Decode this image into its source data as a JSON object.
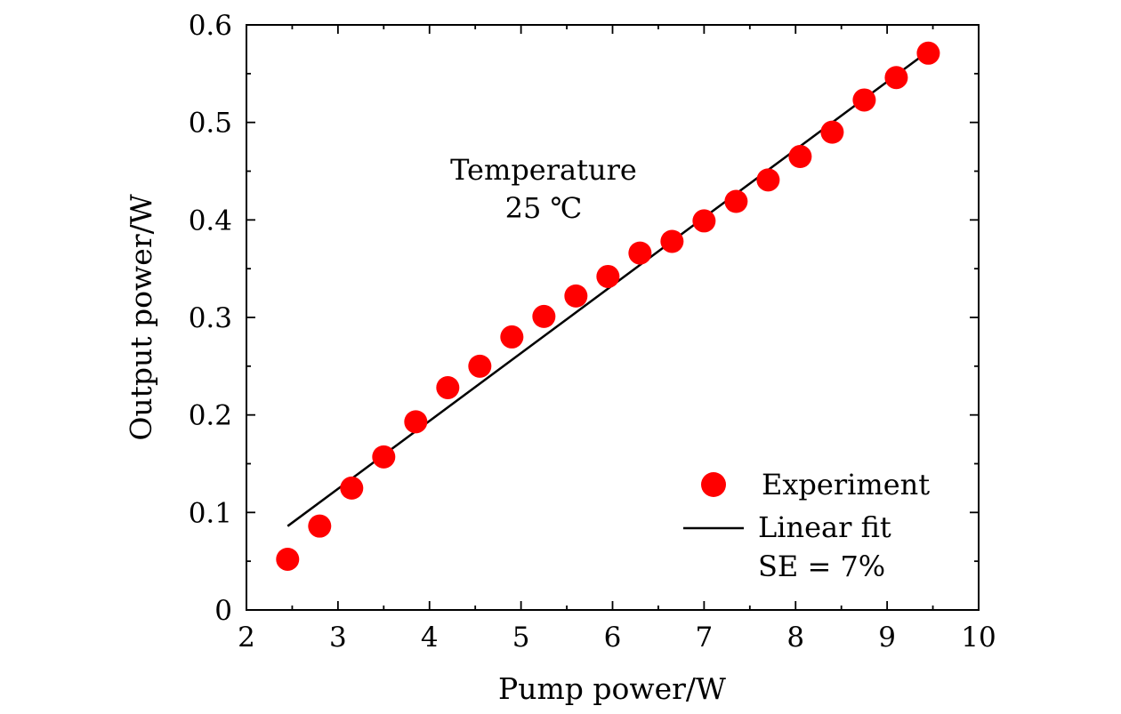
{
  "chart_data": {
    "type": "scatter",
    "xlabel": "Pump power/W",
    "ylabel": "Output power/W",
    "xlim": [
      2,
      10
    ],
    "ylim": [
      0,
      0.6
    ],
    "xticks": [
      "2",
      "3",
      "4",
      "5",
      "6",
      "7",
      "8",
      "9",
      "10"
    ],
    "yticks": [
      "0",
      "0.1",
      "0.2",
      "0.3",
      "0.4",
      "0.5",
      "0.6"
    ],
    "x_minor_step": 0.5,
    "y_minor_step": 0.05,
    "grid": false,
    "legend_position": "bottom-right",
    "annotations": [
      "Temperature",
      "25 ℃"
    ],
    "series": [
      {
        "name": "Experiment",
        "kind": "scatter",
        "color": "#ff0000",
        "x": [
          2.45,
          2.8,
          3.15,
          3.5,
          3.85,
          4.2,
          4.55,
          4.9,
          5.25,
          5.6,
          5.95,
          6.3,
          6.65,
          7.0,
          7.35,
          7.7,
          8.05,
          8.4,
          8.75,
          9.1,
          9.45
        ],
        "y": [
          0.052,
          0.086,
          0.125,
          0.157,
          0.193,
          0.228,
          0.25,
          0.28,
          0.301,
          0.322,
          0.342,
          0.366,
          0.378,
          0.399,
          0.419,
          0.441,
          0.465,
          0.49,
          0.523,
          0.546,
          0.571
        ]
      },
      {
        "name": "Linear fit",
        "kind": "line",
        "color": "#000000",
        "x": [
          2.45,
          9.45
        ],
        "y": [
          0.086,
          0.573
        ]
      }
    ],
    "legend_note": "SE = 7%"
  }
}
